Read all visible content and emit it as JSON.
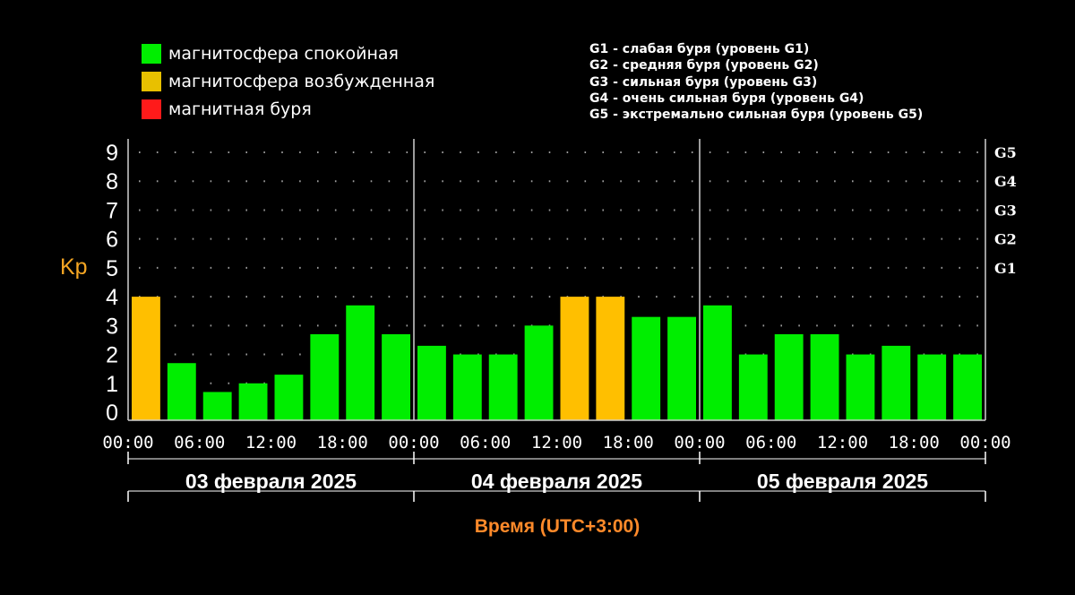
{
  "legend": {
    "items": [
      {
        "label": "магнитосфера спокойная",
        "color": "#00ee00"
      },
      {
        "label": "магнитосфера возбужденная",
        "color": "#e8c000"
      },
      {
        "label": "магнитная буря",
        "color": "#ff1a1a"
      }
    ],
    "storm_levels": [
      "G1 - слабая буря (уровень G1)",
      "G2 - средняя буря (уровень G2)",
      "G3 - сильная буря (уровень G3)",
      "G4 - очень сильная буря (уровень G4)",
      "G5 - экстремально сильная буря (уровень G5)"
    ]
  },
  "chart_data": {
    "type": "bar",
    "ylabel": "Kp",
    "xlabel": "Время (UTC+3:00)",
    "ylim": [
      0,
      9
    ],
    "yticks": [
      "0",
      "1",
      "2",
      "3",
      "4",
      "5",
      "6",
      "7",
      "8",
      "9"
    ],
    "right_axis": [
      {
        "value": 5,
        "label": "G1"
      },
      {
        "value": 6,
        "label": "G2"
      },
      {
        "value": 7,
        "label": "G3"
      },
      {
        "value": 8,
        "label": "G4"
      },
      {
        "value": 9,
        "label": "G5"
      }
    ],
    "days": [
      {
        "label": "03 февраля 2025",
        "time_ticks": [
          "00:00",
          "06:00",
          "12:00",
          "18:00",
          "00:00"
        ]
      },
      {
        "label": "04 февраля 2025",
        "time_ticks": [
          "00:00",
          "06:00",
          "12:00",
          "18:00",
          "00:00"
        ]
      },
      {
        "label": "05 февраля 2025",
        "time_ticks": [
          "00:00",
          "06:00",
          "12:00",
          "18:00",
          "00:00"
        ]
      }
    ],
    "values": [
      4,
      1.7,
      0.7,
      1,
      1.3,
      2.7,
      3.7,
      2.7,
      2.3,
      2,
      2,
      3,
      4,
      4,
      3.3,
      3.3,
      3.7,
      2,
      2.7,
      2.7,
      2,
      2.3,
      2,
      2
    ],
    "status": [
      "excited",
      "quiet",
      "quiet",
      "quiet",
      "quiet",
      "quiet",
      "quiet",
      "quiet",
      "quiet",
      "quiet",
      "quiet",
      "quiet",
      "excited",
      "excited",
      "quiet",
      "quiet",
      "quiet",
      "quiet",
      "quiet",
      "quiet",
      "quiet",
      "quiet",
      "quiet",
      "quiet"
    ],
    "colors": {
      "quiet": "#00ee00",
      "excited": "#ffbf00",
      "storm": "#ff1a1a"
    },
    "grid": true
  }
}
